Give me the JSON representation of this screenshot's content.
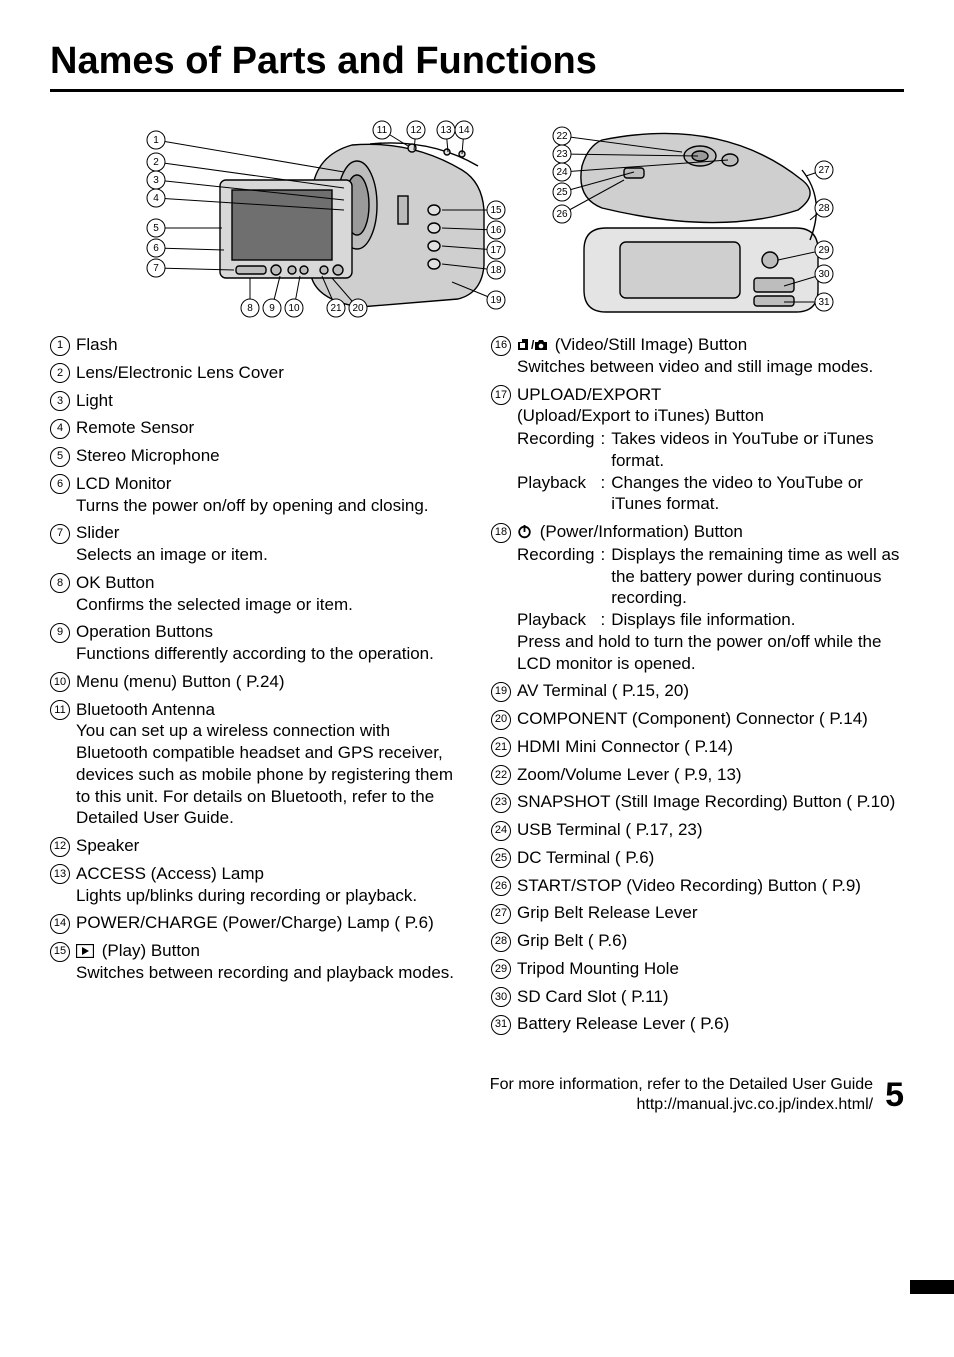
{
  "title": "Names of Parts and Functions",
  "diagram1_labels": [
    "1",
    "2",
    "3",
    "4",
    "5",
    "6",
    "7",
    "8",
    "9",
    "10",
    "11",
    "12",
    "13",
    "14",
    "15",
    "16",
    "17",
    "18",
    "19",
    "20",
    "21"
  ],
  "diagram2_labels": [
    "22",
    "23",
    "24",
    "25",
    "26",
    "27",
    "28",
    "29",
    "30",
    "31"
  ],
  "col1": [
    {
      "n": "1",
      "title": "Flash"
    },
    {
      "n": "2",
      "title": "Lens/Electronic Lens Cover"
    },
    {
      "n": "3",
      "title": "Light"
    },
    {
      "n": "4",
      "title": "Remote Sensor"
    },
    {
      "n": "5",
      "title": "Stereo Microphone"
    },
    {
      "n": "6",
      "title": "LCD Monitor",
      "desc": "Turns the power on/off by opening and closing."
    },
    {
      "n": "7",
      "title": "Slider",
      "desc": "Selects an image or item."
    },
    {
      "n": "8",
      "title": "OK Button",
      "desc": "Confirms the selected image or item."
    },
    {
      "n": "9",
      "title": "Operation Buttons",
      "desc": "Functions differently according to the operation."
    },
    {
      "n": "10",
      "title": "Menu (menu) Button ( P.24)"
    },
    {
      "n": "11",
      "title": "Bluetooth Antenna",
      "desc": "You can set up a wireless connection with Bluetooth compatible headset and GPS receiver, devices such as mobile phone by registering them to this unit. For details on Bluetooth, refer to the Detailed User Guide."
    },
    {
      "n": "12",
      "title": "Speaker"
    },
    {
      "n": "13",
      "title": "ACCESS (Access) Lamp",
      "desc": "Lights up/blinks during recording or playback."
    },
    {
      "n": "14",
      "title": "POWER/CHARGE (Power/Charge) Lamp ( P.6)"
    },
    {
      "n": "15",
      "icon": "play",
      "title": "(Play) Button",
      "desc": "Switches between recording and playback modes."
    }
  ],
  "col2": [
    {
      "n": "16",
      "icon": "video-still",
      "title": "(Video/Still Image) Button",
      "desc": "Switches between video and still image modes."
    },
    {
      "n": "17",
      "title": "UPLOAD/EXPORT",
      "desc": "(Upload/Export to iTunes) Button",
      "rows": [
        {
          "k": "Recording",
          "v": "Takes videos in YouTube or iTunes format."
        },
        {
          "k": "Playback",
          "v": "Changes the video to YouTube or iTunes format."
        }
      ]
    },
    {
      "n": "18",
      "icon": "power",
      "title": "(Power/Information) Button",
      "rows": [
        {
          "k": "Recording",
          "v": "Displays the remaining time as well as the battery power during continuous recording."
        },
        {
          "k": "Playback",
          "v": "Displays file information."
        }
      ],
      "tail": "Press and hold to turn the power on/off while the LCD monitor is opened."
    },
    {
      "n": "19",
      "title": "AV Terminal ( P.15, 20)"
    },
    {
      "n": "20",
      "title": "COMPONENT (Component) Connector ( P.14)"
    },
    {
      "n": "21",
      "title": "HDMI Mini Connector ( P.14)"
    },
    {
      "n": "22",
      "title": "Zoom/Volume Lever ( P.9, 13)"
    },
    {
      "n": "23",
      "title": "SNAPSHOT (Still Image Recording) Button ( P.10)"
    },
    {
      "n": "24",
      "title": "USB Terminal ( P.17, 23)"
    },
    {
      "n": "25",
      "title": "DC Terminal ( P.6)"
    },
    {
      "n": "26",
      "title": "START/STOP (Video Recording) Button ( P.9)"
    },
    {
      "n": "27",
      "title": "Grip Belt Release Lever"
    },
    {
      "n": "28",
      "title": "Grip Belt ( P.6)"
    },
    {
      "n": "29",
      "title": "Tripod Mounting Hole"
    },
    {
      "n": "30",
      "title": "SD Card Slot ( P.11)"
    },
    {
      "n": "31",
      "title": "Battery Release Lever ( P.6)"
    }
  ],
  "footer1": "For more information, refer to the Detailed User Guide",
  "footer2": "http://manual.jvc.co.jp/index.html/",
  "page": "5",
  "colors": {
    "line": "#000",
    "fill": "#cfcfcf",
    "bg": "#fff"
  }
}
